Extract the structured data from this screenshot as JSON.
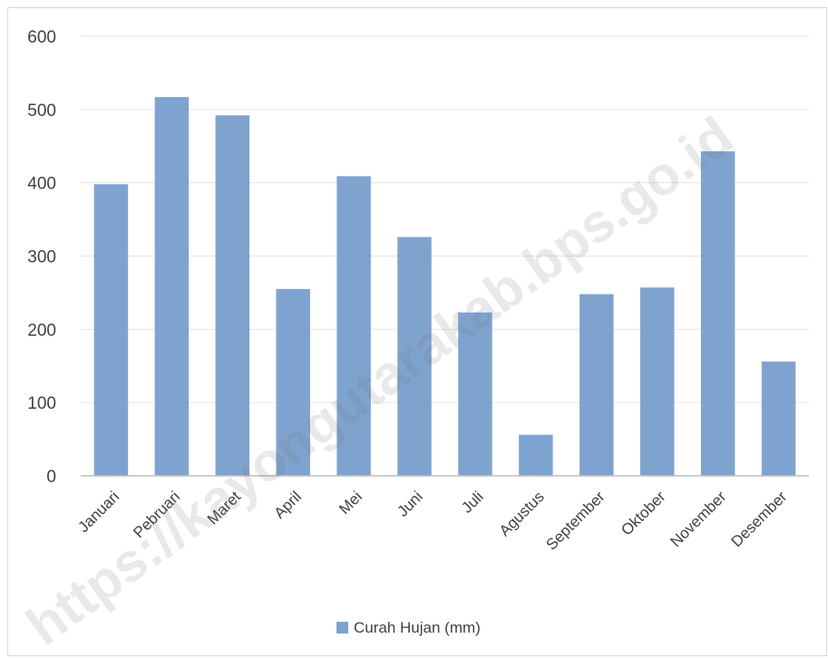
{
  "watermark": "https://kayongutarakab.bps.go.id",
  "colors": {
    "bar": "#7fa3cf",
    "grid": "#e6e6e6",
    "axis": "#bfbfbf",
    "text": "#404040"
  },
  "chart_data": {
    "type": "bar",
    "title": "",
    "xlabel": "",
    "ylabel": "",
    "ylim": [
      0,
      600
    ],
    "yticks": [
      0,
      100,
      200,
      300,
      400,
      500,
      600
    ],
    "grid": true,
    "legend_position": "bottom",
    "categories": [
      "Januari",
      "Pebruari",
      "Maret",
      "April",
      "Mei",
      "Juni",
      "Juli",
      "Agustus",
      "September",
      "Oktober",
      "November",
      "Desember"
    ],
    "series": [
      {
        "name": "Curah Hujan (mm)",
        "values": [
          398,
          517,
          492,
          255,
          409,
          326,
          223,
          56,
          248,
          257,
          443,
          156
        ]
      }
    ]
  }
}
